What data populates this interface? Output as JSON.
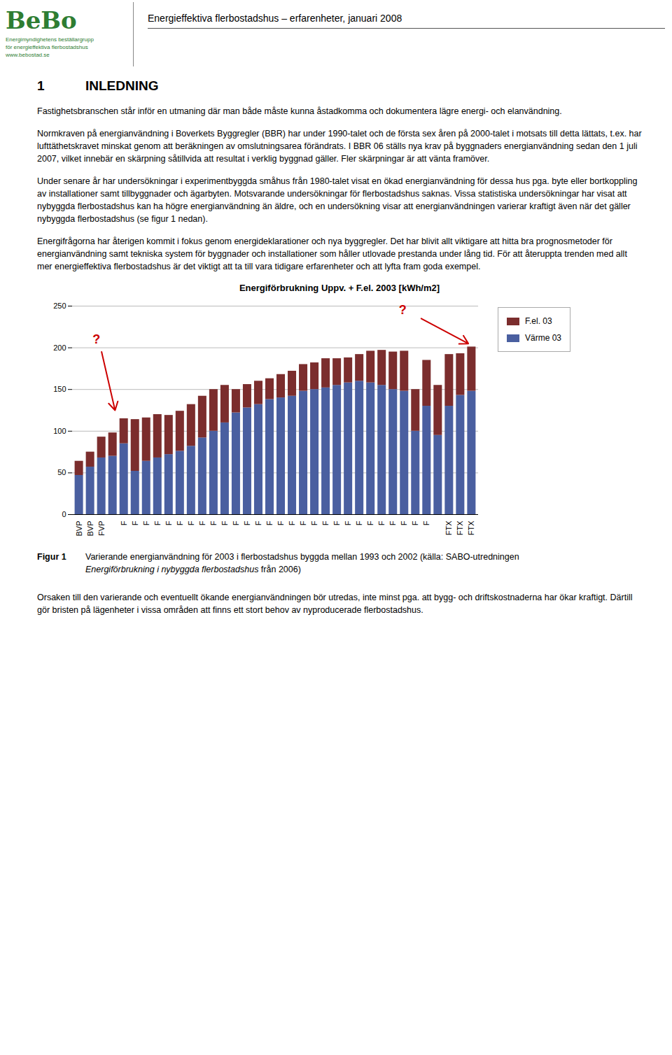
{
  "header": {
    "logo": "BeBo",
    "logo_color": "#2E7D32",
    "tagline": [
      "Energimyndighetens beställargrupp",
      "för energieffektiva flerbostadshus",
      "www.bebostad.se"
    ],
    "page_title": "Energieffektiva flerbostadshus – erfarenheter, januari 2008"
  },
  "section": {
    "number": "1",
    "title": "INLEDNING"
  },
  "paragraphs_before": [
    "Fastighetsbranschen står inför en utmaning där man både måste kunna åstadkomma och dokumentera lägre energi- och elanvändning.",
    "Normkraven på energianvändning i Boverkets Byggregler (BBR) har under 1990-talet och de första sex åren på 2000-talet i motsats till detta lättats, t.ex. har lufttäthetskravet minskat genom att beräkningen av omslutningsarea förändrats. I BBR 06 ställs nya krav på byggnaders energianvändning sedan den 1 juli 2007, vilket innebär en skärpning såtillvida att resultat i verklig byggnad gäller. Fler skärpningar är att vänta framöver.",
    "Under senare år har undersökningar i experimentbyggda småhus från 1980-talet visat en ökad energianvändning för dessa hus pga. byte eller bortkoppling av installationer samt tillbyggnader och ägarbyten. Motsvarande undersökningar för flerbostadshus saknas. Vissa statistiska undersökningar har visat att nybyggda flerbostadshus kan ha högre energianvändning än äldre, och en undersökning visar att energianvändningen varierar kraftigt även när det gäller nybyggda flerbostadshus (se figur 1 nedan).",
    "Energifrågorna har återigen kommit i fokus genom energideklarationer och nya byggregler. Det har blivit allt viktigare att hitta bra prognosmetoder för energianvändning samt tekniska system för byggnader och installationer som håller utlovade prestanda under lång tid. För att återuppta trenden med allt mer energieffektiva flerbostadshus är det viktigt att ta till vara tidigare erfarenheter och att lyfta fram goda exempel."
  ],
  "chart_data": {
    "type": "bar",
    "title": "Energiförbrukning Uppv. + F.el. 2003 [kWh/m2]",
    "stacked": true,
    "categories": [
      "BVP",
      "BVP",
      "FVP",
      null,
      "F",
      "F",
      "F",
      "F",
      "F",
      "F",
      "F",
      "F",
      "F",
      "F",
      "F",
      "F",
      "F",
      "F",
      "F",
      "F",
      "F",
      "F",
      "F",
      "F",
      "F",
      "F",
      "F",
      "F",
      "F",
      "F",
      "F",
      "F",
      null,
      "FTX",
      "FTX",
      "FTX"
    ],
    "series": [
      {
        "name": "Värme 03",
        "color": "#4A5FA0",
        "values": [
          47,
          57,
          68,
          70,
          85,
          52,
          64,
          68,
          72,
          76,
          82,
          92,
          100,
          110,
          122,
          128,
          132,
          138,
          140,
          142,
          148,
          150,
          152,
          155,
          158,
          160,
          158,
          155,
          150,
          148,
          100,
          130,
          95,
          130,
          143,
          148
        ]
      },
      {
        "name": "F.el. 03",
        "color": "#7B2D2D",
        "values": [
          17,
          18,
          25,
          28,
          30,
          62,
          52,
          52,
          47,
          48,
          50,
          50,
          50,
          45,
          28,
          28,
          28,
          25,
          28,
          30,
          32,
          32,
          35,
          32,
          30,
          32,
          38,
          42,
          45,
          48,
          50,
          55,
          60,
          62,
          50,
          53
        ]
      }
    ],
    "ylim": [
      0,
      250
    ],
    "yticks": [
      0,
      50,
      100,
      150,
      200,
      250
    ],
    "grid": true,
    "legend": "right",
    "annotations": [
      {
        "text": "?",
        "x": 1.2,
        "y": 205,
        "color": "#CC0000",
        "arrow": {
          "x1": 2.0,
          "y1": 195,
          "x2": 3.2,
          "y2": 125
        }
      },
      {
        "text": "?",
        "x": 28.5,
        "y": 240,
        "color": "#CC0000",
        "arrow": {
          "x1": 30.5,
          "y1": 235,
          "x2": 34.7,
          "y2": 205
        }
      }
    ]
  },
  "caption": {
    "label": "Figur 1",
    "text": "Varierande energianvändning för 2003 i flerbostadshus byggda mellan 1993 och 2002 (källa: SABO-utredningen ",
    "source_title": "Energiförbrukning i nybyggda flerbostadshus",
    "text_end": " från 2006)"
  },
  "paragraphs_after": [
    "Orsaken till den varierande och eventuellt ökande energianvändningen bör utredas, inte minst pga. att bygg- och driftskostnaderna har ökar kraftigt. Därtill gör bristen på lägenheter i vissa områden att finns ett stort behov av nyproducerade flerbostadshus."
  ]
}
